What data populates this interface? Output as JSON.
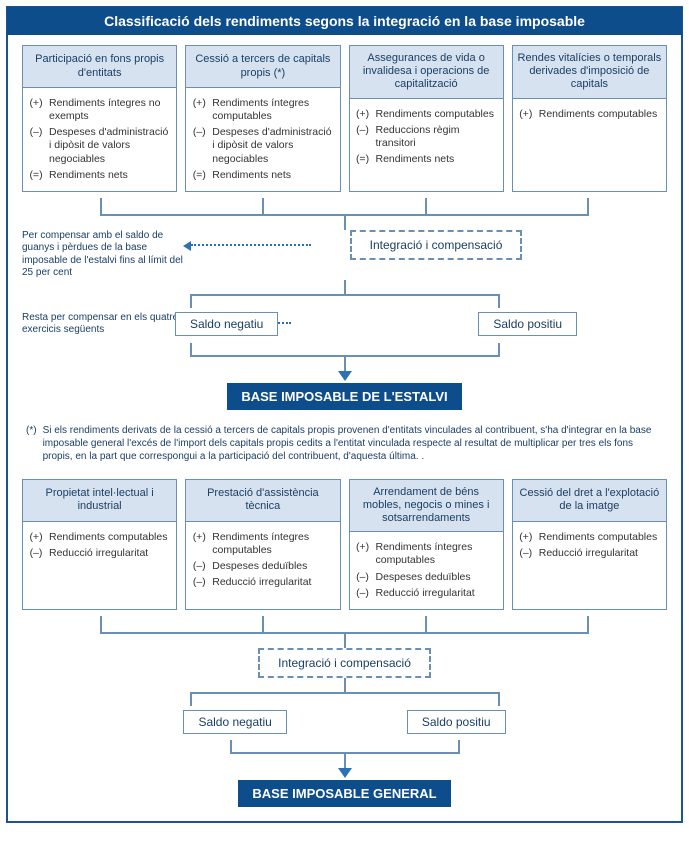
{
  "colors": {
    "primary": "#0d4d8c",
    "border": "#6a8fb5",
    "headBg": "#d6e2ef",
    "text": "#1a3f66",
    "arrow": "#2a72b5"
  },
  "title": "Classificació dels rendiments segons la integració en la base imposable",
  "topCards": [
    {
      "header": "Participació en fons propis d'entitats",
      "items": [
        {
          "sym": "(+)",
          "txt": "Rendiments íntegres no exempts"
        },
        {
          "sym": "(–)",
          "txt": "Despeses d'administració i dipòsit de valors negociables"
        },
        {
          "sym": "(=)",
          "txt": "Rendiments nets"
        }
      ]
    },
    {
      "header": "Cessió a tercers de capitals propis (*)",
      "items": [
        {
          "sym": "(+)",
          "txt": "Rendiments íntegres computables"
        },
        {
          "sym": "(–)",
          "txt": "Despeses d'administració i dipòsit de valors negociables"
        },
        {
          "sym": "(=)",
          "txt": "Rendiments nets"
        }
      ]
    },
    {
      "header": "Assegurances de vida o invalidesa i operacions de capitalització",
      "items": [
        {
          "sym": "(+)",
          "txt": "Rendiments computables"
        },
        {
          "sym": "(–)",
          "txt": "Reduccions règim transitori"
        },
        {
          "sym": "(=)",
          "txt": "Rendiments nets"
        }
      ]
    },
    {
      "header": "Rendes vitalícies o temporals derivades d'imposició de capitals",
      "items": [
        {
          "sym": "(+)",
          "txt": "Rendiments computables"
        }
      ]
    }
  ],
  "integracio": "Integració i compensació",
  "note1": "Per compensar amb el saldo de guanys i pèrdues de la base imposable de l'estalvi fins al límit del 25 per cent",
  "note2": "Resta per compensar en els quatre exercicis següents",
  "saldoNeg": "Saldo negatiu",
  "saldoPos": "Saldo positiu",
  "baseEstalvi": "BASE IMPOSABLE DE L'ESTALVI",
  "footnoteMarker": "(*)",
  "footnote": "Si els rendiments derivats de la cessió a tercers de capitals propis provenen d'entitats vinculades al contribuent, s'ha d'integrar en la base imposable general l'excés de l'import dels capitals propis cedits a l'entitat vinculada respecte al resultat de multiplicar per tres els fons propis, en la part que correspongui a la participació del contribuent, d'aquesta última. .",
  "bottomCards": [
    {
      "header": "Propietat intel·lectual i industrial",
      "items": [
        {
          "sym": "(+)",
          "txt": "Rendiments computables"
        },
        {
          "sym": "(–)",
          "txt": "Reducció irregularitat"
        }
      ]
    },
    {
      "header": "Prestació d'assistència tècnica",
      "items": [
        {
          "sym": "(+)",
          "txt": "Rendiments íntegres computables"
        },
        {
          "sym": "(–)",
          "txt": "Despeses deduïbles"
        },
        {
          "sym": "(–)",
          "txt": "Reducció irregularitat"
        }
      ]
    },
    {
      "header": "Arrendament de béns mobles, negocis o mines i sotsarrendaments",
      "items": [
        {
          "sym": "(+)",
          "txt": "Rendiments íntegres computables"
        },
        {
          "sym": "(–)",
          "txt": "Despeses deduïbles"
        },
        {
          "sym": "(–)",
          "txt": "Reducció irregularitat"
        }
      ]
    },
    {
      "header": "Cessió del dret a l'explotació de la imatge",
      "items": [
        {
          "sym": "(+)",
          "txt": "Rendiments computables"
        },
        {
          "sym": "(–)",
          "txt": "Reducció irregularitat"
        }
      ]
    }
  ],
  "baseGeneral": "BASE IMPOSABLE GENERAL"
}
